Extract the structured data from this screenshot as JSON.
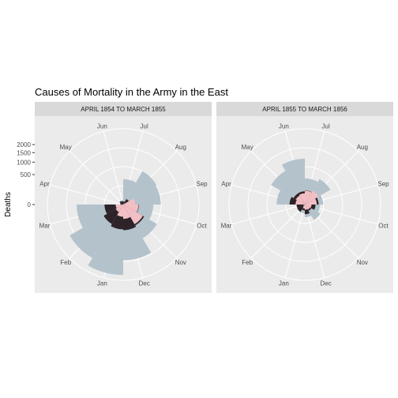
{
  "chart_data": {
    "type": "polar-area",
    "title": "Causes of Mortality in the Army in the East",
    "ylabel": "Deaths",
    "y_ticks": [
      {
        "label": "2000",
        "value": 2000
      },
      {
        "label": "1500",
        "value": 1500
      },
      {
        "label": "1000",
        "value": 1000
      },
      {
        "label": "500",
        "value": 500
      },
      {
        "label": "0",
        "value": 0
      }
    ],
    "grid_rings": [
      0,
      200,
      800,
      1800,
      3200
    ],
    "scale": "sqrt",
    "r_max": 3200,
    "months": [
      "Jul",
      "Aug",
      "Sep",
      "Oct",
      "Nov",
      "Dec",
      "Jan",
      "Feb",
      "Mar",
      "Apr",
      "May",
      "Jun"
    ],
    "series_colors": {
      "disease": "#b3c2cb",
      "other": "#2d2328",
      "wounds": "#f2bfc4"
    },
    "panels": [
      {
        "strip": "APRIL 1854 TO MARCH 1855",
        "series": [
          {
            "key": "disease",
            "values": [
              359,
              828,
              788,
              503,
              844,
              1725,
              2761,
              2120,
              1205,
              1,
              12,
              11
            ]
          },
          {
            "key": "other",
            "values": [
              5,
              23,
              43,
              139,
              325,
              366,
              343,
              283,
              195,
              5,
              9,
              6
            ]
          },
          {
            "key": "wounds",
            "values": [
              0,
              1,
              81,
              132,
              287,
              114,
              83,
              42,
              32,
              0,
              0,
              0
            ]
          }
        ]
      },
      {
        "strip": "APRIL 1855 TO MARCH 1856",
        "series": [
          {
            "key": "disease",
            "values": [
              382,
              483,
              189,
              128,
              178,
              91,
              42,
              24,
              19,
              444,
              840,
              1170
            ]
          },
          {
            "key": "other",
            "values": [
              112,
              113,
              106,
              64,
              31,
              53,
              19,
              41,
              38,
              130,
              94,
              97
            ]
          },
          {
            "key": "wounds",
            "values": [
              108,
              141,
              80,
              25,
              20,
              15,
              9,
              2,
              0,
              48,
              60,
              70
            ]
          }
        ]
      }
    ]
  }
}
